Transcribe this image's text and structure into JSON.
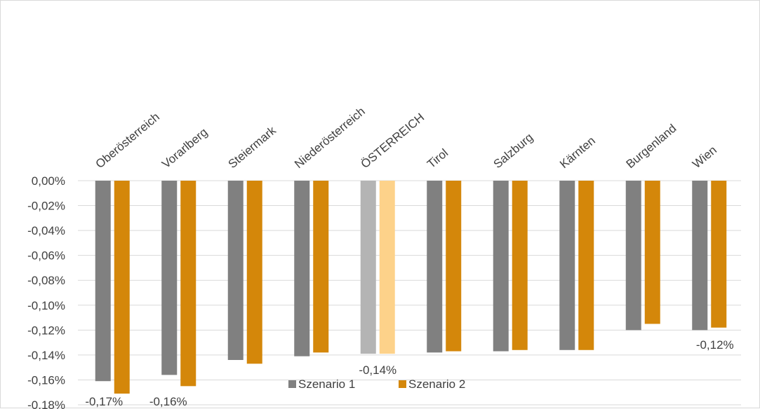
{
  "chart_data": {
    "type": "bar",
    "categories": [
      "Oberösterreich",
      "Vorarlberg",
      "Steiermark",
      "Niederösterreich",
      "ÖSTERREICH",
      "Tirol",
      "Salzburg",
      "Kärnten",
      "Burgenland",
      "Wien"
    ],
    "series": [
      {
        "name": "Szenario 1",
        "color": "#808080",
        "highlight_color": "#b4b4b4",
        "values": [
          -0.161,
          -0.156,
          -0.144,
          -0.141,
          -0.139,
          -0.138,
          -0.137,
          -0.136,
          -0.12,
          -0.12
        ]
      },
      {
        "name": "Szenario 2",
        "color": "#d4870a",
        "highlight_color": "#fdd28a",
        "values": [
          -0.171,
          -0.165,
          -0.147,
          -0.138,
          -0.139,
          -0.137,
          -0.136,
          -0.136,
          -0.115,
          -0.118
        ]
      }
    ],
    "highlight_category": "ÖSTERREICH",
    "data_labels": [
      {
        "category": "Oberösterreich",
        "series": 1,
        "text": "-0,17%"
      },
      {
        "category": "Vorarlberg",
        "series": 1,
        "text": "-0,16%"
      },
      {
        "category": "ÖSTERREICH",
        "series": 1,
        "text": "-0,14%"
      },
      {
        "category": "Wien",
        "series": 1,
        "text": "-0,12%"
      }
    ],
    "yticks": [
      "0,00%",
      "-0,02%",
      "-0,04%",
      "-0,06%",
      "-0,08%",
      "-0,10%",
      "-0,12%",
      "-0,14%",
      "-0,16%",
      "-0,18%"
    ],
    "ylim": [
      -0.18,
      0
    ],
    "grid": true,
    "legend_position": "bottom-center",
    "title": "",
    "xlabel": "",
    "ylabel": ""
  }
}
